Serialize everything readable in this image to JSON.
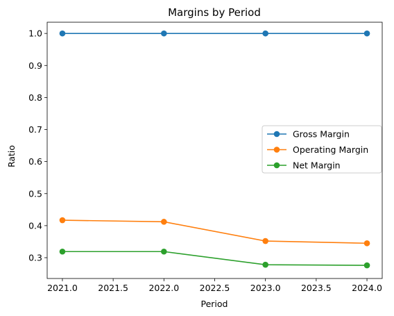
{
  "chart_data": {
    "type": "line",
    "title": "Margins by Period",
    "xlabel": "Period",
    "ylabel": "Ratio",
    "x": [
      2021,
      2022,
      2023,
      2024
    ],
    "xlim": [
      2020.85,
      2024.15
    ],
    "ylim": [
      0.235,
      1.035
    ],
    "xticks": [
      "2021.0",
      "2021.5",
      "2022.0",
      "2022.5",
      "2023.0",
      "2023.5",
      "2024.0"
    ],
    "yticks": [
      "0.3",
      "0.4",
      "0.5",
      "0.6",
      "0.7",
      "0.8",
      "0.9",
      "1.0"
    ],
    "grid": false,
    "legend_position": "center-right",
    "series": [
      {
        "name": "Gross Margin",
        "color": "#1f77b4",
        "values": [
          1.0,
          1.0,
          1.0,
          1.0
        ]
      },
      {
        "name": "Operating Margin",
        "color": "#ff7f0e",
        "values": [
          0.417,
          0.412,
          0.352,
          0.345
        ]
      },
      {
        "name": "Net Margin",
        "color": "#2ca02c",
        "values": [
          0.319,
          0.319,
          0.278,
          0.276
        ]
      }
    ]
  }
}
